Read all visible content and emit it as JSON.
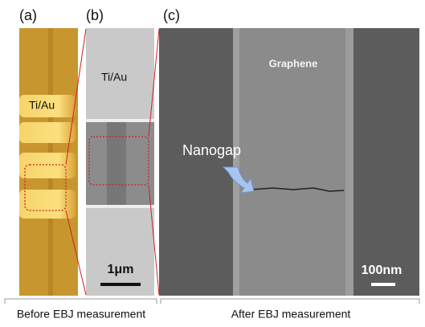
{
  "panels": [
    {
      "label": "(a)",
      "material": "Ti/Au"
    },
    {
      "label": "(b)",
      "material": "Ti/Au",
      "scale": "1μm"
    },
    {
      "label": "(c)",
      "material": "Graphene",
      "annotation": "Nanogap",
      "scale": "100nm"
    }
  ],
  "captions": [
    "Before EBJ measurement",
    "After EBJ measurement"
  ]
}
